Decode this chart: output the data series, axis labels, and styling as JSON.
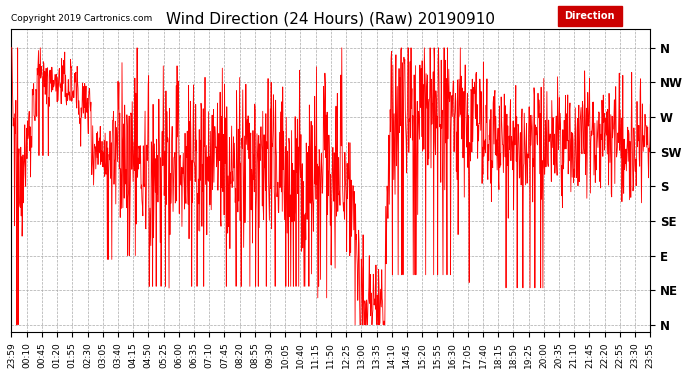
{
  "title": "Wind Direction (24 Hours) (Raw) 20190910",
  "copyright": "Copyright 2019 Cartronics.com",
  "legend_label": "Direction",
  "legend_bg": "#CC0000",
  "line_color": "#FF0000",
  "dark_line_color": "#555555",
  "bg_color": "#FFFFFF",
  "grid_color": "#AAAAAA",
  "ytick_labels": [
    "N",
    "NW",
    "W",
    "SW",
    "S",
    "SE",
    "E",
    "NE",
    "N"
  ],
  "ytick_values": [
    360,
    315,
    270,
    225,
    180,
    135,
    90,
    45,
    0
  ],
  "ylim": [
    -10,
    385
  ],
  "xtick_labels": [
    "23:59",
    "00:10",
    "00:45",
    "01:20",
    "01:55",
    "02:30",
    "03:05",
    "03:40",
    "04:15",
    "04:50",
    "05:25",
    "06:00",
    "06:35",
    "07:10",
    "07:45",
    "08:20",
    "08:55",
    "09:30",
    "10:05",
    "10:40",
    "11:15",
    "11:50",
    "12:25",
    "13:00",
    "13:35",
    "14:10",
    "14:45",
    "15:20",
    "15:55",
    "16:30",
    "17:05",
    "17:40",
    "18:15",
    "18:50",
    "19:25",
    "20:00",
    "20:35",
    "21:10",
    "21:45",
    "22:20",
    "22:55",
    "23:30",
    "23:55"
  ],
  "title_fontsize": 11,
  "tick_fontsize": 6.5,
  "copyright_fontsize": 6.5,
  "figsize": [
    6.9,
    3.75
  ],
  "dpi": 100
}
